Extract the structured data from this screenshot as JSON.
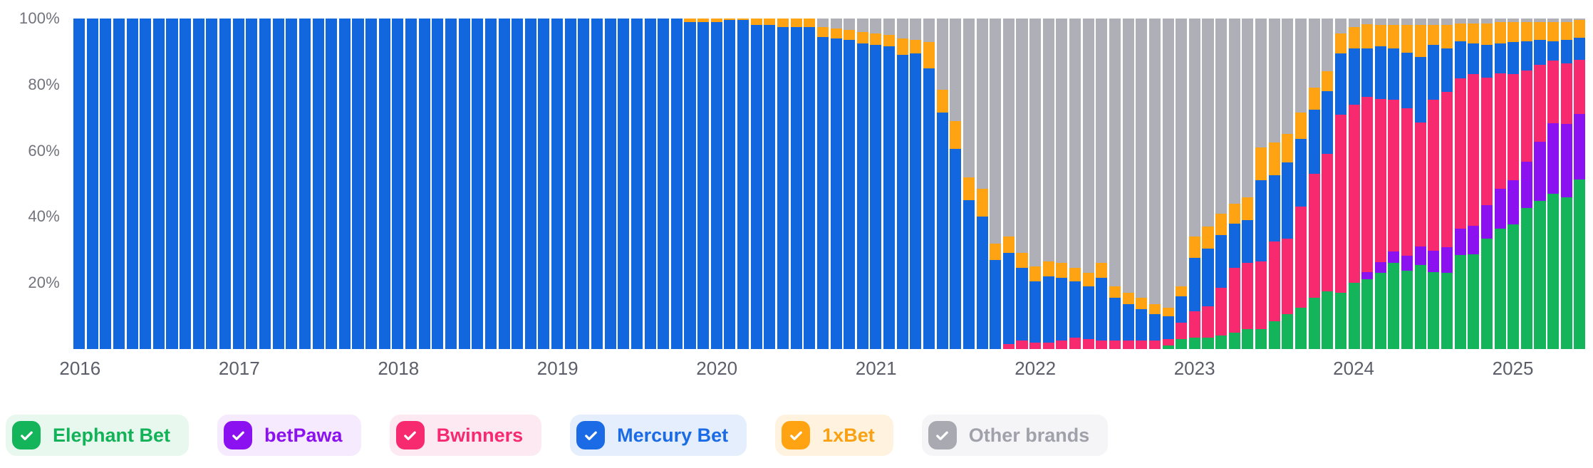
{
  "chart_data": {
    "type": "bar",
    "stacked": true,
    "stack_unit": "percent",
    "ylim": [
      0,
      100
    ],
    "grid": false,
    "x_interval": "month",
    "x_start": "2016-01",
    "x_end": "2025-06",
    "bar_count": 114,
    "y_ticks": [
      {
        "label": "100%",
        "value": 100
      },
      {
        "label": "80%",
        "value": 80
      },
      {
        "label": "60%",
        "value": 60
      },
      {
        "label": "40%",
        "value": 40
      },
      {
        "label": "20%",
        "value": 20
      }
    ],
    "year_ticks": [
      {
        "label": "2016",
        "month_index": 0
      },
      {
        "label": "2017",
        "month_index": 12
      },
      {
        "label": "2018",
        "month_index": 24
      },
      {
        "label": "2019",
        "month_index": 36
      },
      {
        "label": "2020",
        "month_index": 48
      },
      {
        "label": "2021",
        "month_index": 60
      },
      {
        "label": "2022",
        "month_index": 72
      },
      {
        "label": "2023",
        "month_index": 84
      },
      {
        "label": "2024",
        "month_index": 96
      },
      {
        "label": "2025",
        "month_index": 108
      }
    ],
    "series": [
      {
        "name": "Elephant Bet",
        "color": "#14B45A",
        "values": [
          0,
          0,
          0,
          0,
          0,
          0,
          0,
          0,
          0,
          0,
          0,
          0,
          0,
          0,
          0,
          0,
          0,
          0,
          0,
          0,
          0,
          0,
          0,
          0,
          0,
          0,
          0,
          0,
          0,
          0,
          0,
          0,
          0,
          0,
          0,
          0,
          0,
          0,
          0,
          0,
          0,
          0,
          0,
          0,
          0,
          0,
          0,
          0,
          0,
          0,
          0,
          0,
          0,
          0,
          0,
          0,
          0,
          0,
          0,
          0,
          0,
          0,
          0,
          0,
          0,
          0,
          0,
          0,
          0,
          0,
          0,
          0,
          0,
          0,
          0,
          0,
          0,
          0,
          0,
          0,
          0,
          0,
          1,
          3,
          3.5,
          3.5,
          4,
          5,
          6,
          6,
          8.5,
          10.5,
          12.5,
          15.5,
          17.5,
          17,
          20,
          21.2,
          23.1,
          26,
          23.8,
          25.5,
          23.3,
          23.1,
          28.5,
          28.7,
          33.5,
          36.5,
          37.8,
          42.6,
          44.8,
          47,
          46,
          51.2
        ]
      },
      {
        "name": "betPawa",
        "color": "#8B11F0",
        "values": [
          0,
          0,
          0,
          0,
          0,
          0,
          0,
          0,
          0,
          0,
          0,
          0,
          0,
          0,
          0,
          0,
          0,
          0,
          0,
          0,
          0,
          0,
          0,
          0,
          0,
          0,
          0,
          0,
          0,
          0,
          0,
          0,
          0,
          0,
          0,
          0,
          0,
          0,
          0,
          0,
          0,
          0,
          0,
          0,
          0,
          0,
          0,
          0,
          0,
          0,
          0,
          0,
          0,
          0,
          0,
          0,
          0,
          0,
          0,
          0,
          0,
          0,
          0,
          0,
          0,
          0,
          0,
          0,
          0,
          0,
          0,
          0,
          0,
          0,
          0,
          0,
          0,
          0,
          0,
          0,
          0,
          0,
          0,
          0,
          0,
          0,
          0,
          0,
          0,
          0,
          0,
          0,
          0,
          0,
          0,
          0,
          0,
          2,
          3.2,
          3.5,
          4.5,
          5.6,
          6.5,
          7.7,
          8,
          8.5,
          10.1,
          12,
          13.2,
          14,
          18,
          21.3,
          22,
          20
        ]
      },
      {
        "name": "Bwinners",
        "color": "#F7296F",
        "values": [
          0,
          0,
          0,
          0,
          0,
          0,
          0,
          0,
          0,
          0,
          0,
          0,
          0,
          0,
          0,
          0,
          0,
          0,
          0,
          0,
          0,
          0,
          0,
          0,
          0,
          0,
          0,
          0,
          0,
          0,
          0,
          0,
          0,
          0,
          0,
          0,
          0,
          0,
          0,
          0,
          0,
          0,
          0,
          0,
          0,
          0,
          0,
          0,
          0,
          0,
          0,
          0,
          0,
          0,
          0,
          0,
          0,
          0,
          0,
          0,
          0,
          0,
          0,
          0,
          0,
          0,
          0,
          0,
          0,
          0,
          1.5,
          2.5,
          2,
          2,
          2.5,
          3.5,
          3,
          2.5,
          2.5,
          2.5,
          2.5,
          2.5,
          2,
          5,
          8,
          9.5,
          14.5,
          19.5,
          20,
          20.5,
          24,
          23,
          30.5,
          37.5,
          41.5,
          54,
          54,
          53.1,
          49.4,
          46,
          44.5,
          37.5,
          45.6,
          47,
          45.4,
          46,
          38.5,
          35,
          32.3,
          27.6,
          23.2,
          18.9,
          18.5,
          16.4
        ]
      },
      {
        "name": "Mercury Bet",
        "color": "#1266DE",
        "values": [
          100,
          100,
          100,
          100,
          100,
          100,
          100,
          100,
          100,
          100,
          100,
          100,
          100,
          100,
          100,
          100,
          100,
          100,
          100,
          100,
          100,
          100,
          100,
          100,
          100,
          100,
          100,
          100,
          100,
          100,
          100,
          100,
          100,
          100,
          100,
          100,
          100,
          100,
          100,
          100,
          100,
          100,
          100,
          100,
          100,
          100,
          99,
          99,
          99,
          99.5,
          99.5,
          98,
          98,
          97.5,
          97.5,
          97.5,
          94.5,
          94,
          93.5,
          92.5,
          92,
          91.5,
          89,
          89.5,
          85,
          71.5,
          60.5,
          45,
          40,
          27,
          27.5,
          22,
          18.5,
          20,
          19,
          17,
          16,
          19,
          13,
          11,
          9.5,
          8,
          7,
          8,
          16,
          17.5,
          16,
          13.5,
          13,
          24.5,
          20,
          23,
          20.5,
          19.5,
          19,
          18.5,
          17,
          14.7,
          15.8,
          15.5,
          16.8,
          19.7,
          16.6,
          13.2,
          11.2,
          9.3,
          10,
          9,
          9.7,
          9,
          7.6,
          6,
          7,
          6.5
        ]
      },
      {
        "name": "1xBet",
        "color": "#FFA313",
        "values": [
          0,
          0,
          0,
          0,
          0,
          0,
          0,
          0,
          0,
          0,
          0,
          0,
          0,
          0,
          0,
          0,
          0,
          0,
          0,
          0,
          0,
          0,
          0,
          0,
          0,
          0,
          0,
          0,
          0,
          0,
          0,
          0,
          0,
          0,
          0,
          0,
          0,
          0,
          0,
          0,
          0,
          0,
          0,
          0,
          0,
          0,
          1,
          1,
          1,
          0.5,
          0.5,
          2,
          2,
          2.5,
          2.5,
          2.5,
          3,
          3,
          3,
          3.5,
          3.5,
          3.5,
          5,
          4,
          8,
          7,
          8.5,
          7,
          8.5,
          5,
          5,
          4.5,
          4.5,
          4.5,
          4.5,
          4,
          4,
          4.5,
          3.5,
          3.5,
          3.5,
          3,
          2.5,
          3,
          6.5,
          6.5,
          6.5,
          6,
          7,
          10,
          10,
          8.5,
          8,
          6.5,
          6,
          6,
          6.5,
          7.3,
          6.5,
          7,
          8.4,
          9.7,
          6,
          7,
          5.4,
          6,
          6.4,
          6.5,
          6,
          5.8,
          5.4,
          5.8,
          5.5,
          5.4
        ]
      },
      {
        "name": "Other brands",
        "color": "#AFAFB7",
        "values": [
          0,
          0,
          0,
          0,
          0,
          0,
          0,
          0,
          0,
          0,
          0,
          0,
          0,
          0,
          0,
          0,
          0,
          0,
          0,
          0,
          0,
          0,
          0,
          0,
          0,
          0,
          0,
          0,
          0,
          0,
          0,
          0,
          0,
          0,
          0,
          0,
          0,
          0,
          0,
          0,
          0,
          0,
          0,
          0,
          0,
          0,
          0,
          0,
          0,
          0,
          0,
          0,
          0,
          0,
          0,
          0,
          2.5,
          3,
          3.5,
          4,
          4.5,
          5,
          6,
          6.5,
          7,
          21.5,
          31,
          48,
          51.5,
          68,
          66,
          71,
          75,
          73.5,
          74,
          75.5,
          77,
          74,
          81,
          83,
          84.5,
          86.5,
          87.5,
          81,
          66,
          63,
          59,
          56,
          54,
          39,
          37.5,
          35,
          28.5,
          21,
          16,
          4.5,
          2.5,
          1.7,
          2,
          2,
          2,
          2,
          2,
          2,
          1.5,
          1.5,
          1.5,
          1,
          1,
          1,
          1,
          1,
          1,
          0.5
        ]
      }
    ]
  },
  "legend": {
    "items": [
      {
        "label": "Elephant Bet",
        "color": "#14B45A",
        "bg": "#E9F8EF",
        "text_color": "#12B258",
        "checked": true
      },
      {
        "label": "betPawa",
        "color": "#8B11F0",
        "bg": "#F5EAFE",
        "text_color": "#8B11F0",
        "checked": true
      },
      {
        "label": "Bwinners",
        "color": "#F7296F",
        "bg": "#FDE9F1",
        "text_color": "#F7296F",
        "checked": true
      },
      {
        "label": "Mercury Bet",
        "color": "#1A6BE5",
        "bg": "#E4EEFC",
        "text_color": "#1A6BE5",
        "checked": true
      },
      {
        "label": "1xBet",
        "color": "#FFA313",
        "bg": "#FFF3DF",
        "text_color": "#F9A113",
        "checked": true
      },
      {
        "label": "Other brands",
        "color": "#A9A9B2",
        "bg": "#F5F5F7",
        "text_color": "#A0A1AA",
        "checked": true
      }
    ]
  }
}
